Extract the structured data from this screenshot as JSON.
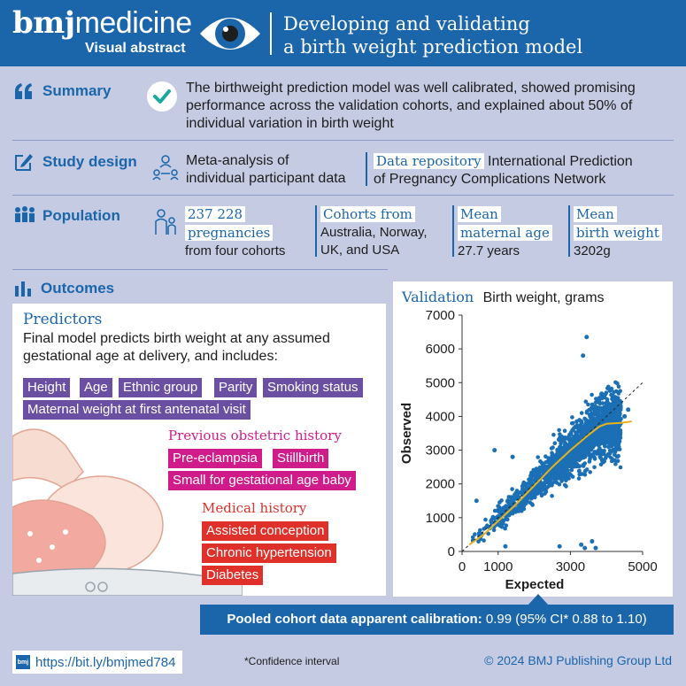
{
  "header": {
    "logo_bold": "bmj",
    "logo_thin": "medicine",
    "logo_sub": "Visual abstract",
    "title_line1": "Developing and validating",
    "title_line2": "a birth weight prediction model"
  },
  "summary": {
    "label": "Summary",
    "text": "The birthweight prediction model was well calibrated, showed promising performance across the validation cohorts, and explained about 50% of individual variation in birth weight"
  },
  "study_design": {
    "label": "Study design",
    "design_line1": "Meta-analysis of",
    "design_line2": "individual participant data",
    "repo_label": "Data repository",
    "repo_value1": "International Prediction",
    "repo_value2": "of Pregnancy Complications Network"
  },
  "population": {
    "label": "Population",
    "count_line1": "237 228",
    "count_line2": "pregnancies",
    "count_line3": "from four cohorts",
    "cohorts_label": "Cohorts from",
    "cohorts_line1": "Australia, Norway,",
    "cohorts_line2": "UK, and USA",
    "age_label1": "Mean",
    "age_label2": "maternal age",
    "age_value": "27.7 years",
    "bw_label1": "Mean",
    "bw_label2": "birth weight",
    "bw_value": "3202g"
  },
  "outcomes": {
    "label": "Outcomes",
    "predictors_title": "Predictors",
    "predictors_text": "Final model predicts birth weight at any assumed gestational age at delivery, and includes:",
    "general_tags": [
      "Height",
      "Age",
      "Ethnic group",
      "Parity",
      "Smoking status",
      "Maternal weight at first antenatal visit"
    ],
    "obstetric_title": "Previous obstetric history",
    "obstetric_tags": [
      "Pre-eclampsia",
      "Stillbirth",
      "Small for gestational age baby"
    ],
    "medical_title": "Medical history",
    "medical_tags": [
      "Assisted conception",
      "Chronic hypertension",
      "Diabetes"
    ]
  },
  "validation": {
    "label": "Validation",
    "subtitle": "Birth weight, grams",
    "calibration_label": "Pooled cohort data apparent calibration:",
    "calibration_value": "0.99 (95% CI* 0.88 to 1.10)"
  },
  "chart_data": {
    "type": "scatter",
    "title": "Birth weight, grams",
    "xlabel": "Expected",
    "ylabel": "Observed",
    "xlim": [
      0,
      5000
    ],
    "ylim": [
      0,
      7000
    ],
    "xticks": [
      "0",
      "1000",
      "3000",
      "5000"
    ],
    "xtick_values": [
      0,
      1000,
      3000,
      5000
    ],
    "yticks": [
      "0",
      "1000",
      "2000",
      "3000",
      "4000",
      "5000",
      "6000",
      "7000"
    ],
    "ytick_values": [
      0,
      1000,
      2000,
      3000,
      4000,
      5000,
      6000,
      7000
    ],
    "point_color": "#1b6fb5",
    "curve_color": "#e8b21b",
    "reference_line": "y = x (dashed)",
    "calibration_curve": {
      "x": [
        200,
        600,
        1000,
        1500,
        2000,
        2500,
        3000,
        3500,
        3800,
        4000,
        4400,
        4700
      ],
      "y": [
        200,
        500,
        900,
        1400,
        1950,
        2500,
        3000,
        3450,
        3700,
        3780,
        3810,
        3850
      ]
    },
    "outliers": {
      "x": [
        3450,
        3350,
        4100,
        4500,
        4600,
        3300,
        3600,
        1400,
        900,
        1200,
        400,
        3700,
        2700,
        3400
      ],
      "y": [
        6350,
        5800,
        4300,
        4000,
        4200,
        200,
        300,
        2800,
        3000,
        150,
        1500,
        100,
        150,
        100
      ]
    }
  },
  "footer": {
    "bmj_icon": "bmj",
    "url": "https://bit.ly/bmjmed784",
    "footnote": "*Confidence interval",
    "copyright": "© 2024 BMJ Publishing Group Ltd"
  }
}
